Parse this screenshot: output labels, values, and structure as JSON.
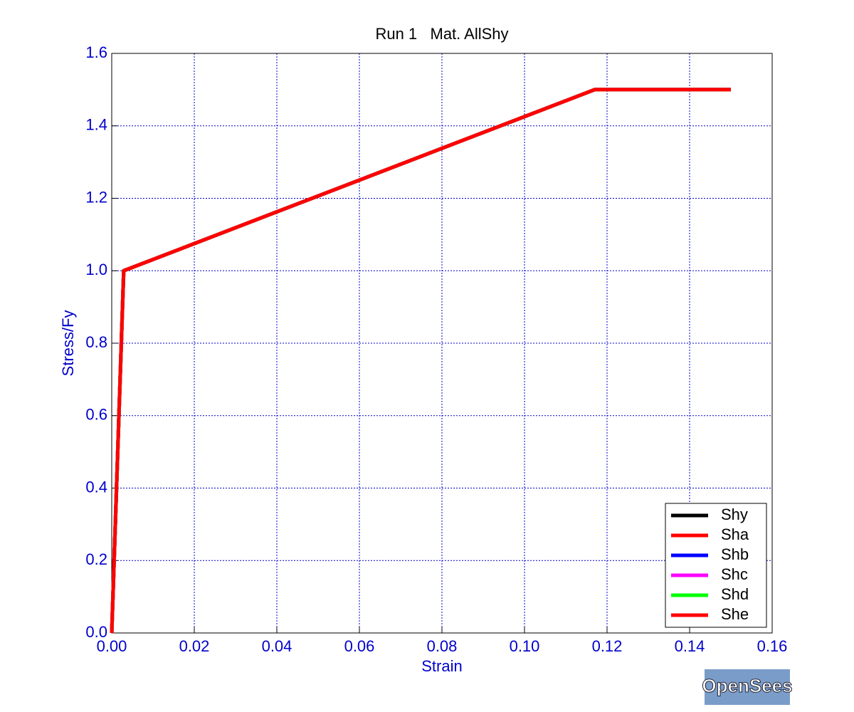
{
  "chart_data": {
    "type": "line",
    "title": "Run 1   Mat. AllShy",
    "xlabel": "Strain",
    "ylabel": "Stress/Fy",
    "x": [
      0,
      0.0029,
      0.117,
      0.15
    ],
    "series": [
      {
        "name": "Shy",
        "color": "#000000",
        "values": [
          0,
          1.0,
          1.5,
          1.5
        ]
      },
      {
        "name": "Sha",
        "color": "#ff0000",
        "values": [
          0,
          1.0,
          1.5,
          1.5
        ]
      },
      {
        "name": "Shb",
        "color": "#0000ff",
        "values": [
          0,
          1.0,
          1.5,
          1.5
        ]
      },
      {
        "name": "Shc",
        "color": "#ff00ff",
        "values": [
          0,
          1.0,
          1.5,
          1.5
        ]
      },
      {
        "name": "Shd",
        "color": "#00ff00",
        "values": [
          0,
          1.0,
          1.5,
          1.5
        ]
      },
      {
        "name": "She",
        "color": "#ff0000",
        "values": [
          0,
          1.0,
          1.5,
          1.5
        ]
      }
    ],
    "xlim": [
      0,
      0.16
    ],
    "xticks": [
      {
        "value": 0,
        "label": "0.00"
      },
      {
        "value": 0.02,
        "label": "0.02"
      },
      {
        "value": 0.04,
        "label": "0.04"
      },
      {
        "value": 0.06,
        "label": "0.06"
      },
      {
        "value": 0.08,
        "label": "0.08"
      },
      {
        "value": 0.1,
        "label": "0.10"
      },
      {
        "value": 0.12,
        "label": "0.12"
      },
      {
        "value": 0.14,
        "label": "0.14"
      },
      {
        "value": 0.16,
        "label": "0.16"
      }
    ],
    "ylim": [
      0,
      1.6
    ],
    "yticks": [
      {
        "value": 0,
        "label": "0.0"
      },
      0.2,
      0.4,
      0.6,
      0.8,
      {
        "value": 1,
        "label": "1.0"
      },
      1.2,
      1.4,
      1.6
    ],
    "grid": true,
    "legend": "lower right"
  },
  "logo": "OpenSees"
}
